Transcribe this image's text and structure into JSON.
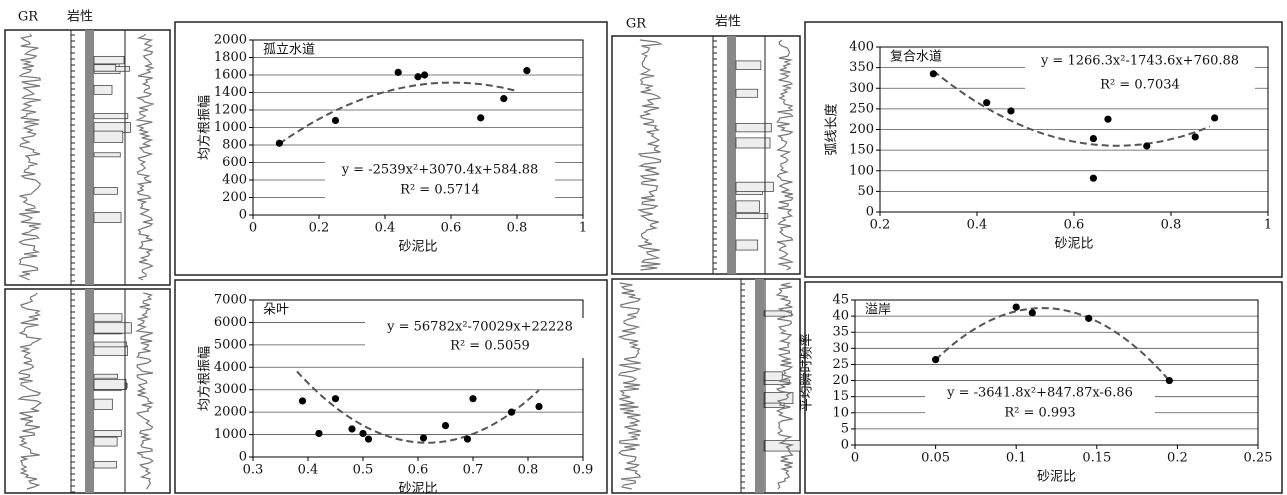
{
  "log_headers": [
    "GR",
    "岩性",
    "GR",
    "岩性"
  ],
  "chart_data": [
    {
      "type": "scatter",
      "title": "孤立水道",
      "x_label": "砂泥比",
      "y_label": "均方根振幅",
      "x": [
        0.08,
        0.25,
        0.44,
        0.5,
        0.52,
        0.69,
        0.76,
        0.83
      ],
      "values": [
        820,
        1080,
        1630,
        1580,
        1600,
        1110,
        1330,
        1650
      ],
      "color": "#000000",
      "xlim": [
        0,
        1
      ],
      "xticks": [
        0,
        0.2,
        0.4,
        0.6,
        0.8,
        1
      ],
      "ylim": [
        0,
        2000
      ],
      "yticks": [
        0,
        200,
        400,
        600,
        800,
        1000,
        1200,
        1400,
        1600,
        1800,
        2000
      ],
      "grid": true,
      "trendline": {
        "coefficients": [
          -2539,
          3070.4,
          584.88
        ],
        "x_range": [
          0.08,
          0.8
        ],
        "color": "#555555"
      },
      "equation": "y = -2539x²+3070.4x+584.88",
      "r_squared": "R² = 0.5714"
    },
    {
      "type": "scatter",
      "title": "复合水道",
      "x_label": "砂泥比",
      "y_label": "弧线长度",
      "x": [
        0.31,
        0.42,
        0.47,
        0.64,
        0.67,
        0.64,
        0.75,
        0.85,
        0.89
      ],
      "values": [
        335,
        265,
        245,
        178,
        225,
        82,
        160,
        182,
        228
      ],
      "color": "#000000",
      "xlim": [
        0.2,
        1
      ],
      "xticks": [
        0.2,
        0.4,
        0.6,
        0.8,
        1
      ],
      "ylim": [
        0,
        400
      ],
      "yticks": [
        0,
        50,
        100,
        150,
        200,
        250,
        300,
        350,
        400
      ],
      "grid": true,
      "trendline": {
        "coefficients": [
          1266.3,
          -1743.6,
          760.88
        ],
        "x_range": [
          0.31,
          0.88
        ],
        "color": "#555555"
      },
      "equation": "y = 1266.3x²-1743.6x+760.88",
      "r_squared": "R² = 0.7034"
    },
    {
      "type": "scatter",
      "title": "朵叶",
      "x_label": "砂泥比",
      "y_label": "均方根振幅",
      "x": [
        0.39,
        0.42,
        0.45,
        0.48,
        0.5,
        0.51,
        0.61,
        0.65,
        0.69,
        0.7,
        0.77,
        0.82
      ],
      "values": [
        2500,
        1050,
        2600,
        1250,
        1050,
        800,
        850,
        1400,
        800,
        2600,
        2000,
        2250
      ],
      "color": "#000000",
      "xlim": [
        0.3,
        0.9
      ],
      "xticks": [
        0.3,
        0.4,
        0.5,
        0.6,
        0.7,
        0.8,
        0.9
      ],
      "ylim": [
        0,
        7000
      ],
      "yticks": [
        0,
        1000,
        2000,
        3000,
        4000,
        5000,
        6000,
        7000
      ],
      "grid": true,
      "trendline": {
        "coefficients": [
          56782,
          -70029,
          22228
        ],
        "x_range": [
          0.38,
          0.82
        ],
        "color": "#555555"
      },
      "equation": "y = 56782x²-70029x+22228",
      "r_squared": "R² = 0.5059"
    },
    {
      "type": "scatter",
      "title": "溢岸",
      "x_label": "砂泥比",
      "y_label": "平均瞬时频率",
      "x": [
        0.05,
        0.1,
        0.11,
        0.145,
        0.195
      ],
      "values": [
        26.5,
        42.8,
        41,
        39.3,
        20
      ],
      "color": "#000000",
      "xlim": [
        0,
        0.25
      ],
      "xticks": [
        0,
        0.05,
        0.1,
        0.15,
        0.2,
        0.25
      ],
      "ylim": [
        0,
        45
      ],
      "yticks": [
        0,
        5,
        10,
        15,
        20,
        25,
        30,
        35,
        40,
        45
      ],
      "grid": true,
      "trendline": {
        "coefficients": [
          -3641.8,
          847.87,
          -6.86
        ],
        "x_range": [
          0.05,
          0.195
        ],
        "color": "#555555"
      },
      "equation": "y = -3641.8x²+847.87x-6.86",
      "r_squared": "R² = 0.993"
    }
  ]
}
